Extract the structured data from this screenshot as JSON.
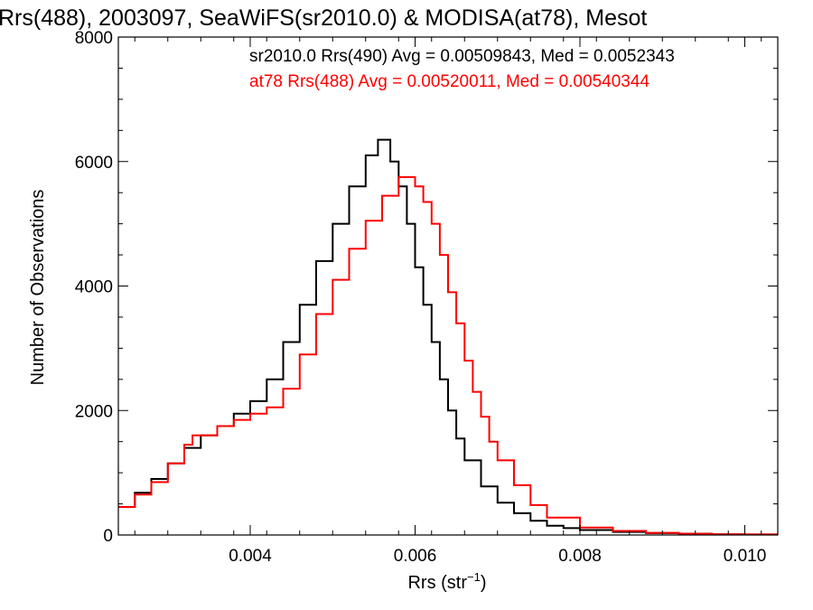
{
  "chart_data": {
    "type": "line",
    "title": "Rrs(488), 2003097, SeaWiFS(sr2010.0) & MODISA(at78), Mesot",
    "xlabel": "Rrs (str",
    "xlabel_superscript": "−1",
    "xlabel_suffix": ")",
    "ylabel": "Number of Observations",
    "xlim": [
      0.0024,
      0.0104
    ],
    "ylim": [
      0,
      8000
    ],
    "x_ticks": [
      0.004,
      0.006,
      0.008,
      0.01
    ],
    "x_tick_labels": [
      "0.004",
      "0.006",
      "0.008",
      "0.010"
    ],
    "y_ticks": [
      0,
      2000,
      4000,
      6000,
      8000
    ],
    "y_tick_labels": [
      "0",
      "2000",
      "4000",
      "6000",
      "8000"
    ],
    "grid": false,
    "legend_position": "top",
    "series": [
      {
        "name": "sr2010.0 Rrs(490) Avg = 0.00509843, Med = 0.0052343",
        "color": "#000000",
        "x": [
          0.0024,
          0.0026,
          0.0028,
          0.003,
          0.0032,
          0.0034,
          0.0036,
          0.0038,
          0.004,
          0.0042,
          0.0044,
          0.0046,
          0.0048,
          0.005,
          0.0052,
          0.0054,
          0.00555,
          0.0057,
          0.0058,
          0.0059,
          0.006,
          0.0061,
          0.0062,
          0.0063,
          0.0064,
          0.0065,
          0.0066,
          0.0068,
          0.007,
          0.0072,
          0.0074,
          0.0076,
          0.0078,
          0.008,
          0.0084,
          0.0088,
          0.0092,
          0.0096,
          0.01,
          0.0104
        ],
        "y": [
          450,
          680,
          900,
          1150,
          1400,
          1600,
          1750,
          1950,
          2150,
          2500,
          3100,
          3700,
          4400,
          5000,
          5600,
          6100,
          6350,
          6000,
          5600,
          5000,
          4300,
          3700,
          3100,
          2500,
          2000,
          1550,
          1200,
          780,
          520,
          350,
          230,
          150,
          110,
          80,
          50,
          30,
          20,
          12,
          8,
          5
        ]
      },
      {
        "name": "at78 Rrs(488) Avg = 0.00520011, Med = 0.00540344",
        "color": "#ff0000",
        "x": [
          0.0024,
          0.0026,
          0.0028,
          0.003,
          0.0032,
          0.0033,
          0.0034,
          0.0036,
          0.0038,
          0.004,
          0.0042,
          0.0044,
          0.0046,
          0.0048,
          0.005,
          0.0052,
          0.0054,
          0.0056,
          0.0058,
          0.0059,
          0.006,
          0.0061,
          0.0062,
          0.0063,
          0.0064,
          0.0065,
          0.0066,
          0.0067,
          0.0068,
          0.0069,
          0.007,
          0.0072,
          0.0074,
          0.0076,
          0.008,
          0.0084,
          0.0088,
          0.0092,
          0.0096,
          0.01,
          0.0104
        ],
        "y": [
          450,
          650,
          850,
          1150,
          1450,
          1600,
          1600,
          1750,
          1850,
          1950,
          2050,
          2350,
          2900,
          3550,
          4100,
          4600,
          5050,
          5450,
          5750,
          5750,
          5600,
          5350,
          5000,
          4500,
          3900,
          3400,
          2800,
          2300,
          1900,
          1500,
          1200,
          800,
          480,
          280,
          120,
          65,
          35,
          20,
          12,
          8,
          5
        ]
      }
    ]
  }
}
